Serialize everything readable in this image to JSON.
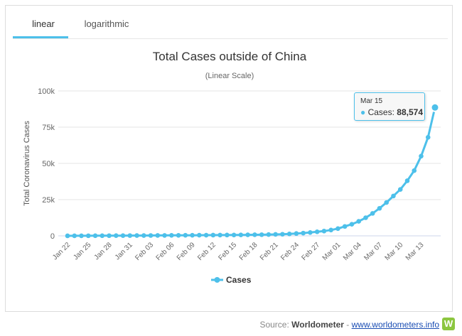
{
  "tabs": [
    {
      "label": "linear",
      "active": true
    },
    {
      "label": "logarithmic",
      "active": false
    }
  ],
  "tooltip": {
    "date": "Mar 15",
    "series_label": "Cases:",
    "value": "88,574"
  },
  "source": {
    "prefix": "Source:",
    "brand": "Worldometer",
    "separator": "-",
    "link": "www.worldometers.info",
    "icon_letter": "W"
  },
  "colors": {
    "series": "#4dc0ea",
    "tab_underline": "#4dc0ea",
    "grid": "#e6e6e6",
    "axis_text": "#666666"
  },
  "chart_data": {
    "type": "line",
    "title": "Total Cases outside of China",
    "subtitle": "(Linear Scale)",
    "xlabel": "",
    "ylabel": "Total Coronavirus Cases",
    "ylim": [
      0,
      100000
    ],
    "yticks": [
      0,
      25000,
      50000,
      75000,
      100000
    ],
    "ytick_labels": [
      "0",
      "25k",
      "50k",
      "75k",
      "100k"
    ],
    "xtick_labels": [
      "Jan 22",
      "Jan 25",
      "Jan 28",
      "Jan 31",
      "Feb 03",
      "Feb 06",
      "Feb 09",
      "Feb 12",
      "Feb 15",
      "Feb 18",
      "Feb 21",
      "Feb 24",
      "Feb 27",
      "Mar 01",
      "Mar 04",
      "Mar 07",
      "Mar 10",
      "Mar 13"
    ],
    "legend_position": "bottom",
    "grid": true,
    "categories": [
      "Jan 22",
      "Jan 23",
      "Jan 24",
      "Jan 25",
      "Jan 26",
      "Jan 27",
      "Jan 28",
      "Jan 29",
      "Jan 30",
      "Jan 31",
      "Feb 01",
      "Feb 02",
      "Feb 03",
      "Feb 04",
      "Feb 05",
      "Feb 06",
      "Feb 07",
      "Feb 08",
      "Feb 09",
      "Feb 10",
      "Feb 11",
      "Feb 12",
      "Feb 13",
      "Feb 14",
      "Feb 15",
      "Feb 16",
      "Feb 17",
      "Feb 18",
      "Feb 19",
      "Feb 20",
      "Feb 21",
      "Feb 22",
      "Feb 23",
      "Feb 24",
      "Feb 25",
      "Feb 26",
      "Feb 27",
      "Feb 28",
      "Feb 29",
      "Mar 01",
      "Mar 02",
      "Mar 03",
      "Mar 04",
      "Mar 05",
      "Mar 06",
      "Mar 07",
      "Mar 08",
      "Mar 09",
      "Mar 10",
      "Mar 11",
      "Mar 12",
      "Mar 13",
      "Mar 14",
      "Mar 15"
    ],
    "series": [
      {
        "name": "Cases",
        "values": [
          10,
          30,
          40,
          60,
          80,
          100,
          120,
          140,
          160,
          180,
          200,
          220,
          250,
          270,
          290,
          320,
          350,
          380,
          410,
          440,
          470,
          500,
          530,
          560,
          600,
          650,
          700,
          750,
          800,
          900,
          1000,
          1100,
          1300,
          1600,
          1900,
          2300,
          2800,
          3300,
          4000,
          5000,
          6500,
          8000,
          10000,
          12500,
          15500,
          19000,
          23000,
          27500,
          32000,
          38000,
          45000,
          55000,
          68000,
          88574
        ]
      }
    ]
  }
}
